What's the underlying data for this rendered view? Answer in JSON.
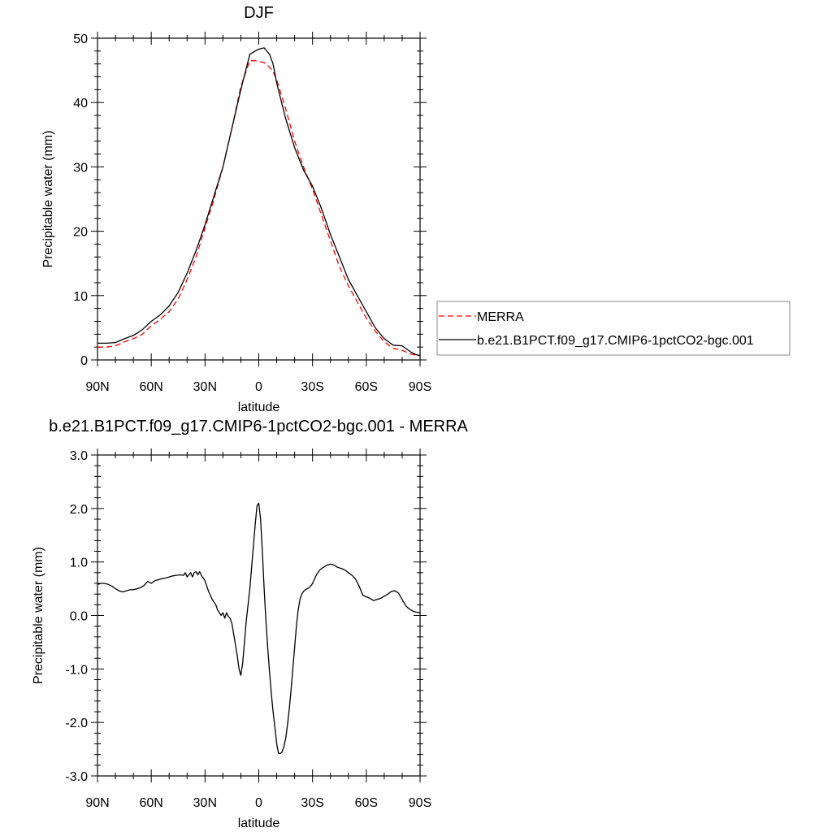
{
  "chart_data": [
    {
      "type": "line",
      "title": "DJF",
      "xlabel": "latitude",
      "ylabel": "Precipitable water (mm)",
      "xlim": [
        90,
        -90
      ],
      "ylim": [
        0,
        50
      ],
      "x_ticks": [
        90,
        60,
        30,
        0,
        -30,
        -60,
        -90
      ],
      "x_tick_labels": [
        "90N",
        "60N",
        "30N",
        "0",
        "30S",
        "60S",
        "90S"
      ],
      "y_ticks": [
        0,
        10,
        20,
        30,
        40,
        50
      ],
      "y_tick_labels": [
        "0",
        "10",
        "20",
        "30",
        "40",
        "50"
      ],
      "legend_position": "right",
      "series": [
        {
          "name": "MERRA",
          "color": "#ff0000",
          "style": "dashed",
          "x": [
            90,
            85,
            80,
            75,
            70,
            65,
            60,
            55,
            50,
            45,
            40,
            35,
            30,
            25,
            20,
            15,
            10,
            5,
            2,
            0,
            -3,
            -6,
            -8,
            -10,
            -15,
            -20,
            -25,
            -30,
            -35,
            -40,
            -45,
            -50,
            -55,
            -60,
            -65,
            -70,
            -75,
            -80,
            -85,
            -88,
            -90
          ],
          "y": [
            2.0,
            2.0,
            2.2,
            2.8,
            3.3,
            4.0,
            5.3,
            6.3,
            7.5,
            9.5,
            12.5,
            16.0,
            20.5,
            25.0,
            30.0,
            36.0,
            42.5,
            46.5,
            46.5,
            46.4,
            46.2,
            45.5,
            44.8,
            43.5,
            39.0,
            34.0,
            30.0,
            26.5,
            22.5,
            18.5,
            14.5,
            11.5,
            9.0,
            6.5,
            4.5,
            2.8,
            1.8,
            1.5,
            0.9,
            0.7,
            0.6
          ]
        },
        {
          "name": "b.e21.B1PCT.f09_g17.CMIP6-1pctCO2-bgc.001",
          "color": "#000000",
          "style": "solid",
          "x": [
            90,
            85,
            80,
            75,
            70,
            65,
            60,
            55,
            50,
            45,
            40,
            35,
            30,
            25,
            20,
            15,
            10,
            5,
            2,
            0,
            -3,
            -6,
            -8,
            -10,
            -15,
            -20,
            -25,
            -30,
            -35,
            -40,
            -45,
            -50,
            -55,
            -60,
            -65,
            -70,
            -75,
            -80,
            -85,
            -88,
            -90
          ],
          "y": [
            2.6,
            2.6,
            2.7,
            3.3,
            3.8,
            4.7,
            6.0,
            7.0,
            8.4,
            10.5,
            13.5,
            17.0,
            21.0,
            25.5,
            30.0,
            36.0,
            42.0,
            47.5,
            48.0,
            48.3,
            48.5,
            47.5,
            46.0,
            43.0,
            37.5,
            33.0,
            29.5,
            27.0,
            23.5,
            19.5,
            16.0,
            12.5,
            10.0,
            7.5,
            5.0,
            3.3,
            2.3,
            2.2,
            1.2,
            0.8,
            0.7
          ]
        }
      ]
    },
    {
      "type": "line",
      "title": "b.e21.B1PCT.f09_g17.CMIP6-1pctCO2-bgc.001 - MERRA",
      "xlabel": "latitude",
      "ylabel": "Precipitable water (mm)",
      "xlim": [
        90,
        -90
      ],
      "ylim": [
        -3.0,
        3.0
      ],
      "x_ticks": [
        90,
        60,
        30,
        0,
        -30,
        -60,
        -90
      ],
      "x_tick_labels": [
        "90N",
        "60N",
        "30N",
        "0",
        "30S",
        "60S",
        "90S"
      ],
      "y_ticks": [
        3.0,
        2.0,
        1.0,
        0.0,
        -1.0,
        -2.0,
        -3.0
      ],
      "y_tick_labels": [
        "3.0",
        "2.0",
        "1.0",
        "0.0",
        "-1.0",
        "-2.0",
        "-3.0"
      ],
      "series": [
        {
          "color": "#000000",
          "style": "solid",
          "x": [
            90,
            88,
            86,
            84,
            82,
            80,
            78,
            76,
            74,
            72,
            70,
            68,
            66,
            64,
            62,
            60,
            58,
            55,
            52,
            50,
            48,
            46,
            44,
            42,
            41,
            40,
            39,
            38,
            37,
            36,
            35,
            34,
            33,
            32,
            30,
            28,
            26,
            25,
            24,
            23,
            22,
            21,
            20,
            19,
            18,
            17,
            16,
            15,
            14,
            13,
            12,
            11,
            10,
            9,
            8,
            7,
            6,
            5,
            4,
            3,
            2,
            1,
            0,
            -1,
            -2,
            -3,
            -4,
            -5,
            -6,
            -7,
            -8,
            -9,
            -10,
            -11,
            -12,
            -13,
            -14,
            -15,
            -16,
            -17,
            -18,
            -19,
            -20,
            -21,
            -22,
            -23,
            -24,
            -25,
            -26,
            -27,
            -28,
            -29,
            -30,
            -32,
            -34,
            -36,
            -38,
            -40,
            -42,
            -44,
            -46,
            -48,
            -50,
            -52,
            -54,
            -56,
            -58,
            -60,
            -62,
            -64,
            -66,
            -68,
            -70,
            -72,
            -74,
            -76,
            -78,
            -80,
            -82,
            -84,
            -86,
            -88,
            -90
          ],
          "y": [
            0.58,
            0.6,
            0.6,
            0.58,
            0.55,
            0.5,
            0.46,
            0.44,
            0.46,
            0.48,
            0.48,
            0.5,
            0.52,
            0.56,
            0.64,
            0.6,
            0.65,
            0.68,
            0.7,
            0.72,
            0.74,
            0.75,
            0.76,
            0.75,
            0.8,
            0.72,
            0.76,
            0.8,
            0.72,
            0.8,
            0.82,
            0.76,
            0.82,
            0.75,
            0.65,
            0.45,
            0.3,
            0.25,
            0.2,
            0.1,
            0.05,
            0.0,
            0.05,
            -0.05,
            0.05,
            -0.02,
            -0.05,
            -0.15,
            -0.35,
            -0.55,
            -0.75,
            -1.0,
            -1.12,
            -0.9,
            -0.5,
            -0.1,
            0.2,
            0.5,
            0.9,
            1.3,
            1.7,
            2.05,
            2.1,
            1.8,
            1.2,
            0.5,
            -0.1,
            -0.6,
            -1.05,
            -1.45,
            -1.8,
            -2.1,
            -2.4,
            -2.58,
            -2.58,
            -2.55,
            -2.45,
            -2.3,
            -2.05,
            -1.75,
            -1.4,
            -1.0,
            -0.6,
            -0.2,
            0.1,
            0.3,
            0.4,
            0.45,
            0.48,
            0.5,
            0.52,
            0.55,
            0.6,
            0.75,
            0.85,
            0.9,
            0.94,
            0.96,
            0.94,
            0.9,
            0.88,
            0.85,
            0.8,
            0.75,
            0.68,
            0.55,
            0.38,
            0.35,
            0.32,
            0.28,
            0.3,
            0.32,
            0.36,
            0.4,
            0.45,
            0.46,
            0.42,
            0.3,
            0.18,
            0.12,
            0.08,
            0.06,
            0.05
          ]
        }
      ]
    }
  ]
}
